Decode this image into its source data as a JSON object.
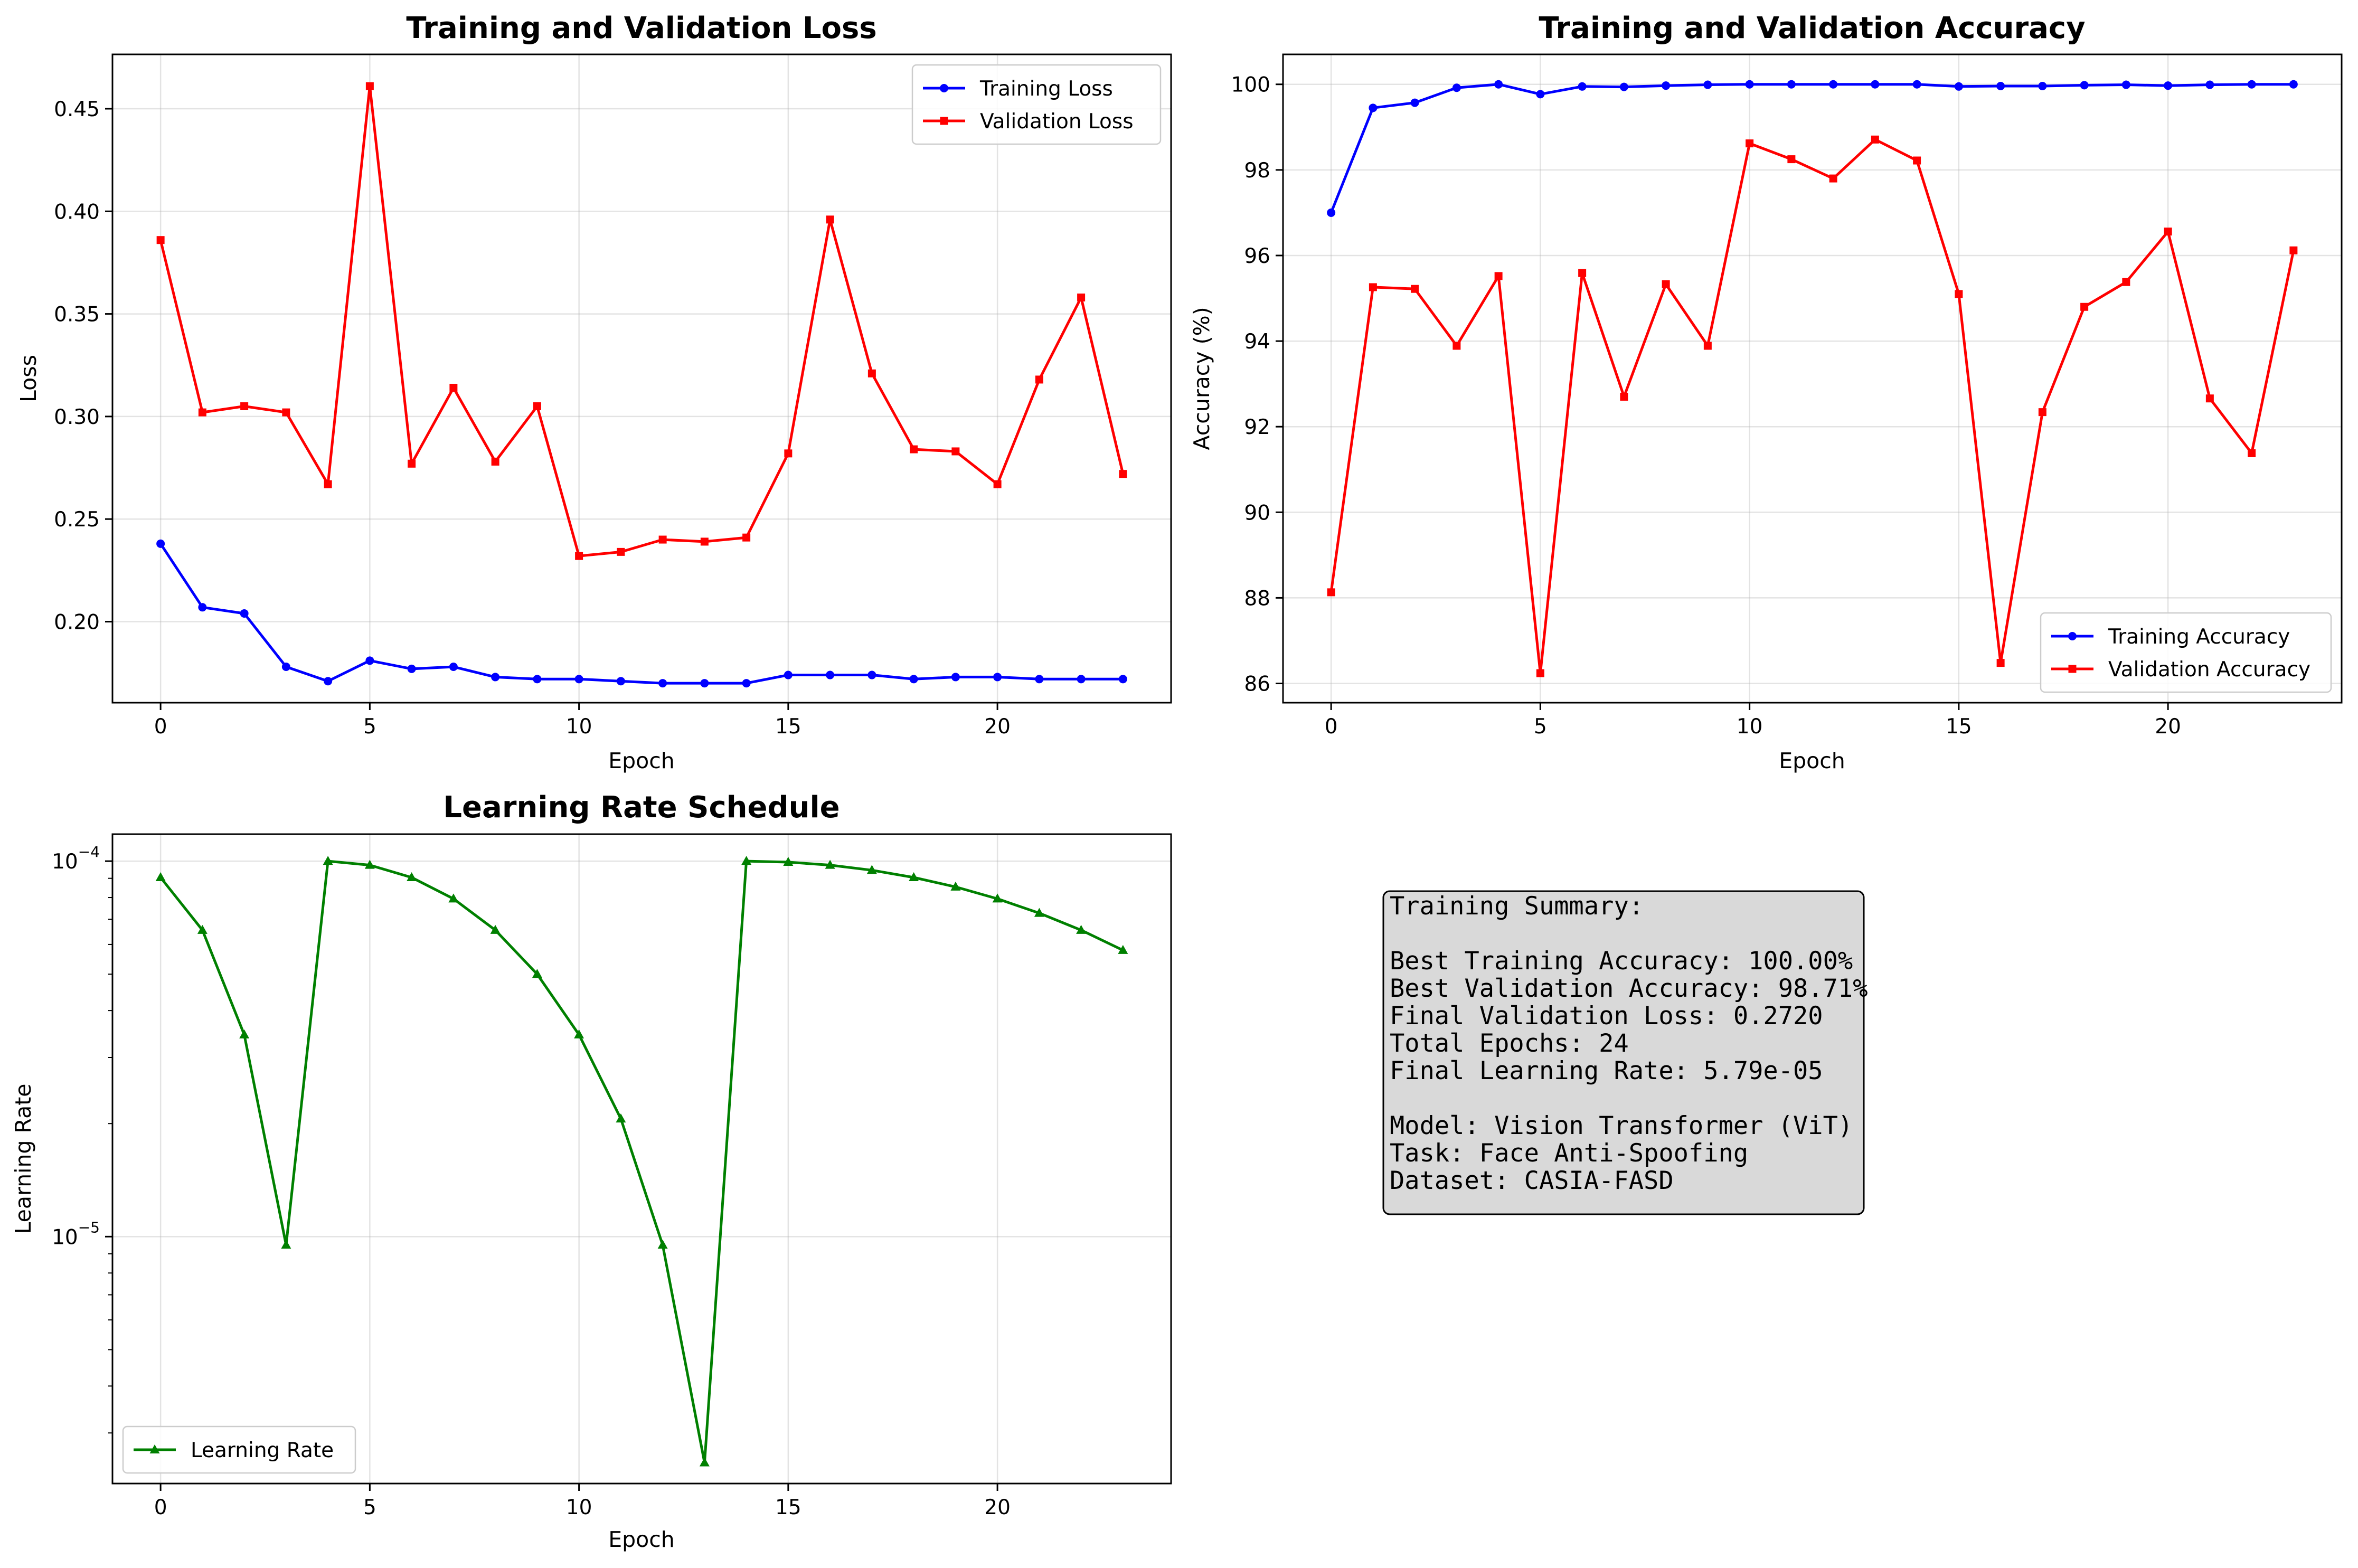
{
  "chart_data": [
    {
      "type": "line",
      "title": "Training and Validation Loss",
      "xlabel": "Epoch",
      "ylabel": "Loss",
      "xlim": [
        -1.15,
        24.15
      ],
      "ylim": [
        0.1605,
        0.4765
      ],
      "xticks": [
        0,
        5,
        10,
        15,
        20
      ],
      "yticks": [
        0.2,
        0.25,
        0.3,
        0.35,
        0.4,
        0.45
      ],
      "ytick_labels": [
        "0.20",
        "0.25",
        "0.30",
        "0.35",
        "0.40",
        "0.45"
      ],
      "grid": true,
      "legend": "upper right",
      "x": [
        0,
        1,
        2,
        3,
        4,
        5,
        6,
        7,
        8,
        9,
        10,
        11,
        12,
        13,
        14,
        15,
        16,
        17,
        18,
        19,
        20,
        21,
        22,
        23
      ],
      "series": [
        {
          "name": "Training Loss",
          "color": "#0000ff",
          "marker": "circle",
          "values": [
            0.238,
            0.207,
            0.204,
            0.178,
            0.171,
            0.181,
            0.177,
            0.178,
            0.173,
            0.172,
            0.172,
            0.171,
            0.17,
            0.17,
            0.17,
            0.174,
            0.174,
            0.174,
            0.172,
            0.173,
            0.173,
            0.172,
            0.172,
            0.172
          ]
        },
        {
          "name": "Validation Loss",
          "color": "#ff0000",
          "marker": "square",
          "values": [
            0.386,
            0.302,
            0.305,
            0.302,
            0.267,
            0.461,
            0.277,
            0.314,
            0.278,
            0.305,
            0.232,
            0.234,
            0.24,
            0.239,
            0.241,
            0.282,
            0.396,
            0.321,
            0.284,
            0.283,
            0.267,
            0.318,
            0.358,
            0.272
          ]
        }
      ]
    },
    {
      "type": "line",
      "title": "Training and Validation Accuracy",
      "xlabel": "Epoch",
      "ylabel": "Accuracy (%)",
      "xlim": [
        -1.15,
        24.15
      ],
      "ylim": [
        85.55,
        100.7
      ],
      "xticks": [
        0,
        5,
        10,
        15,
        20
      ],
      "yticks": [
        86,
        88,
        90,
        92,
        94,
        96,
        98,
        100
      ],
      "ytick_labels": [
        "86",
        "88",
        "90",
        "92",
        "94",
        "96",
        "98",
        "100"
      ],
      "grid": true,
      "legend": "lower right",
      "x": [
        0,
        1,
        2,
        3,
        4,
        5,
        6,
        7,
        8,
        9,
        10,
        11,
        12,
        13,
        14,
        15,
        16,
        17,
        18,
        19,
        20,
        21,
        22,
        23
      ],
      "series": [
        {
          "name": "Training Accuracy",
          "color": "#0000ff",
          "marker": "circle",
          "values": [
            97.0,
            99.45,
            99.57,
            99.92,
            100.0,
            99.77,
            99.95,
            99.94,
            99.97,
            99.99,
            100.0,
            100.0,
            100.0,
            100.0,
            100.0,
            99.95,
            99.96,
            99.96,
            99.98,
            99.99,
            99.97,
            99.99,
            100.0,
            100.0
          ]
        },
        {
          "name": "Validation Accuracy",
          "color": "#ff0000",
          "marker": "square",
          "values": [
            88.13,
            95.26,
            95.22,
            93.89,
            95.52,
            86.24,
            95.59,
            92.7,
            95.33,
            93.89,
            98.62,
            98.25,
            97.8,
            98.71,
            98.22,
            95.1,
            86.48,
            92.34,
            94.8,
            95.38,
            96.56,
            92.66,
            91.38,
            96.12
          ]
        }
      ]
    },
    {
      "type": "line",
      "title": "Learning Rate Schedule",
      "xlabel": "Epoch",
      "ylabel": "Learning Rate",
      "xlim": [
        -1.15,
        24.15
      ],
      "ylim": [
        2.2e-06,
        0.000118
      ],
      "yscale": "log",
      "xticks": [
        0,
        5,
        10,
        15,
        20
      ],
      "yticks": [
        1e-05,
        0.0001
      ],
      "ytick_labels": [
        {
          "base": "10",
          "exp": "−5"
        },
        {
          "base": "10",
          "exp": "−4"
        }
      ],
      "grid": true,
      "legend": "lower left",
      "x": [
        0,
        1,
        2,
        3,
        4,
        5,
        6,
        7,
        8,
        9,
        10,
        11,
        12,
        13,
        14,
        15,
        16,
        17,
        18,
        19,
        20,
        21,
        22,
        23
      ],
      "series": [
        {
          "name": "Learning Rate",
          "color": "#008000",
          "marker": "triangle",
          "values": [
            9.05e-05,
            6.55e-05,
            3.45e-05,
            9.5e-06,
            0.0001,
            9.76e-05,
            9.05e-05,
            7.94e-05,
            6.55e-05,
            5e-05,
            3.45e-05,
            2.06e-05,
            9.5e-06,
            2.5e-06,
            0.0001,
            9.94e-05,
            9.76e-05,
            9.46e-05,
            9.05e-05,
            8.54e-05,
            7.94e-05,
            7.27e-05,
            6.55e-05,
            5.79e-05
          ]
        }
      ]
    }
  ],
  "summary": {
    "lines": [
      "Training Summary:",
      "",
      "Best Training Accuracy: 100.00%",
      "Best Validation Accuracy: 98.71%",
      "Final Validation Loss: 0.2720",
      "Total Epochs: 24",
      "Final Learning Rate: 5.79e-05",
      "",
      "Model: Vision Transformer (ViT)",
      "Task: Face Anti-Spoofing",
      "Dataset: CASIA-FASD"
    ],
    "background": "#d9d9d9"
  }
}
